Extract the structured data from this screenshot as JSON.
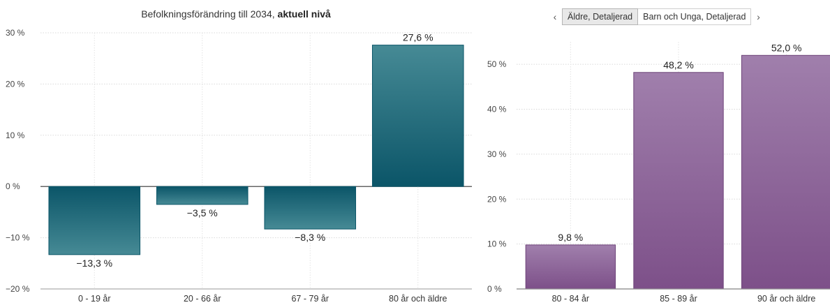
{
  "nav": {
    "prev_icon": "‹",
    "next_icon": "›",
    "tabs": [
      {
        "label": "Äldre, Detaljerad",
        "active": true
      },
      {
        "label": "Barn och Unga, Detaljerad",
        "active": false
      }
    ]
  },
  "chart_data": [
    {
      "type": "bar",
      "title_plain": "Befolkningsförändring till 2034, ",
      "title_bold": "aktuell nivå",
      "categories": [
        "0 - 19 år",
        "20 - 66 år",
        "67 - 79 år",
        "80 år och äldre"
      ],
      "values": [
        -13.3,
        -3.5,
        -8.3,
        27.6
      ],
      "value_labels": [
        "−13,3 %",
        "−3,5 %",
        "−8,3 %",
        "27,6 %"
      ],
      "ylim": [
        -20,
        30
      ],
      "yticks": [
        30,
        20,
        10,
        0,
        -10,
        -20
      ],
      "ytick_labels": [
        "30 %",
        "20 %",
        "10 %",
        "0 %",
        "−10 %",
        "−20 %"
      ],
      "grid": true,
      "color": "#1f6b7a"
    },
    {
      "type": "bar",
      "categories": [
        "80 - 84 år",
        "85 - 89 år",
        "90 år och äldre"
      ],
      "values": [
        9.8,
        48.2,
        52.0
      ],
      "value_labels": [
        "9,8 %",
        "48,2 %",
        "52,0 %"
      ],
      "ylim": [
        0,
        55
      ],
      "yticks": [
        50,
        40,
        30,
        20,
        10,
        0
      ],
      "ytick_labels": [
        "50 %",
        "40 %",
        "30 %",
        "20 %",
        "10 %",
        "0 %"
      ],
      "grid": true,
      "color": "#8a5f97"
    }
  ]
}
